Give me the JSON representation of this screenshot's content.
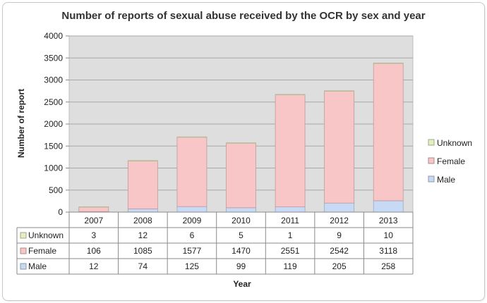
{
  "chart_data": {
    "type": "bar",
    "stacked": true,
    "title": "Number of reports of sexual abuse received by the OCR by sex and year",
    "xlabel": "Year",
    "ylabel": "Number of report",
    "ylim": [
      0,
      4000
    ],
    "yticks": [
      0,
      500,
      1000,
      1500,
      2000,
      2500,
      3000,
      3500,
      4000
    ],
    "categories": [
      "2007",
      "2008",
      "2009",
      "2010",
      "2011",
      "2012",
      "2013"
    ],
    "series": [
      {
        "name": "Male",
        "values": [
          12,
          74,
          125,
          99,
          119,
          205,
          258
        ],
        "color": "#c6daf5"
      },
      {
        "name": "Female",
        "values": [
          106,
          1085,
          1577,
          1470,
          2551,
          2542,
          3118
        ],
        "color": "#f8c6c6"
      },
      {
        "name": "Unknown",
        "values": [
          3,
          12,
          6,
          5,
          1,
          9,
          10
        ],
        "color": "#e4f0c0"
      }
    ],
    "legend_position": "right",
    "legend_order": [
      "Unknown",
      "Female",
      "Male"
    ],
    "data_table": true,
    "grid": true,
    "plot_background": "#dedede"
  }
}
